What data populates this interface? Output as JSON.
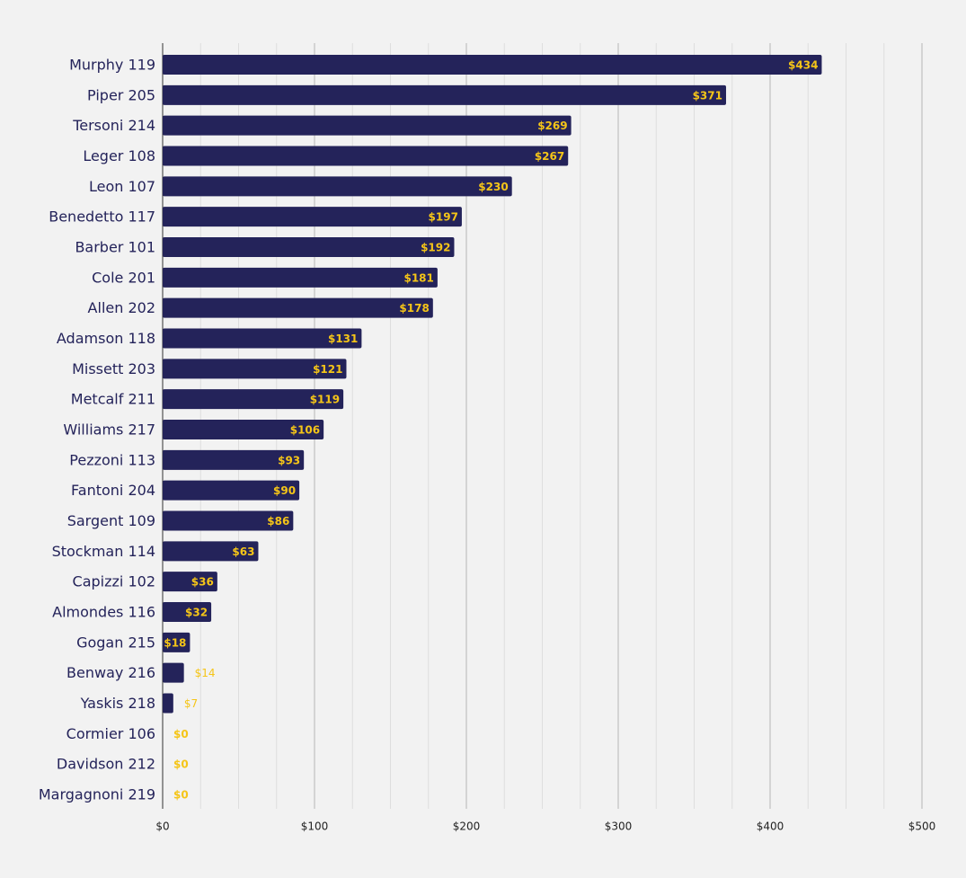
{
  "chart_data": {
    "type": "barh",
    "categories": [
      "Murphy 119",
      "Piper 205",
      "Tersoni 214",
      "Leger 108",
      "Leon 107",
      "Benedetto 117",
      "Barber 101",
      "Cole 201",
      "Allen 202",
      "Adamson 118",
      "Missett 203",
      "Metcalf 211",
      "Williams 217",
      "Pezzoni 113",
      "Fantoni 204",
      "Sargent 109",
      "Stockman 114",
      "Capizzi 102",
      "Almondes 116",
      "Gogan 215",
      "Benway 216",
      "Yaskis 218",
      "Cormier 106",
      "Davidson 212",
      "Margagnoni 219"
    ],
    "values": [
      434,
      371,
      269,
      267,
      230,
      197,
      192,
      181,
      178,
      131,
      121,
      119,
      106,
      93,
      90,
      86,
      63,
      36,
      32,
      18,
      14,
      7,
      0,
      0,
      0
    ],
    "value_labels": [
      "$434",
      "$371",
      "$269",
      "$267",
      "$230",
      "$197",
      "$192",
      "$181",
      "$178",
      "$131",
      "$121",
      "$119",
      "$106",
      "$93",
      "$90",
      "$86",
      "$63",
      "$36",
      "$32",
      "$18",
      "$14",
      "$7",
      "$0",
      "$0",
      "$0"
    ],
    "color": "#24235a",
    "label_color": "#f5c518",
    "xlim": [
      0,
      500
    ],
    "xticks": [
      {
        "value": 0,
        "label": "$0"
      },
      {
        "value": 100,
        "label": "$100"
      },
      {
        "value": 200,
        "label": "$200"
      },
      {
        "value": 300,
        "label": "$300"
      },
      {
        "value": 400,
        "label": "$400"
      },
      {
        "value": 500,
        "label": "$500"
      }
    ],
    "minor_xticks": [
      25,
      50,
      75,
      125,
      150,
      175,
      225,
      250,
      275,
      325,
      350,
      375,
      425,
      450,
      475
    ],
    "grid": true
  }
}
